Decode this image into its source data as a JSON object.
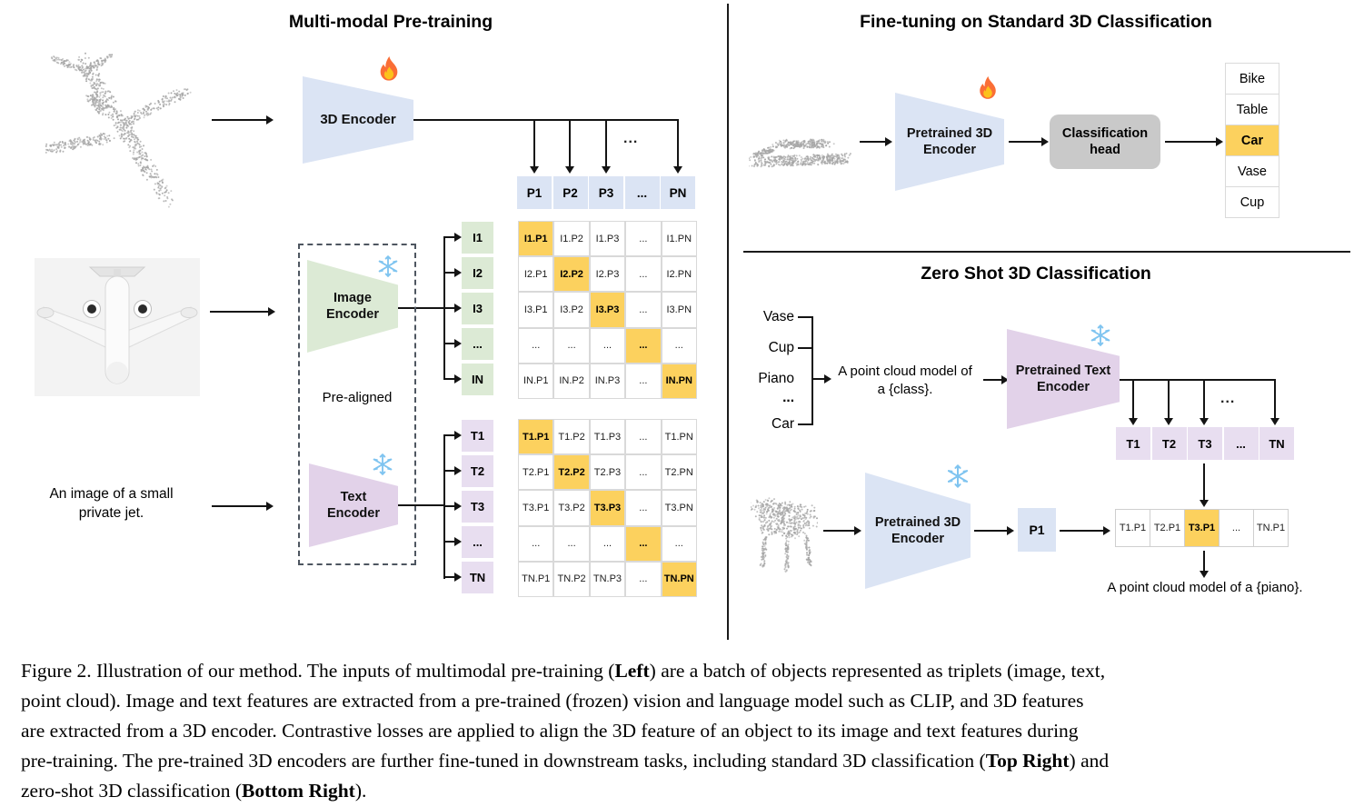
{
  "figure": {
    "left": {
      "title": "Multi-modal Pre-training",
      "encoder_3d": {
        "label": "3D Encoder",
        "icon": "fire-icon"
      },
      "p_row": [
        "P1",
        "P2",
        "P3",
        "...",
        "PN"
      ],
      "branch_ellipsis": "...",
      "image_encoder": {
        "line1": "Image",
        "line2": "Encoder",
        "icon": "snowflake-icon"
      },
      "text_encoder": {
        "line1": "Text",
        "line2": "Encoder",
        "icon": "snowflake-icon"
      },
      "prealigned": "Pre-aligned",
      "input_text": {
        "line1": "An image of a small",
        "line2": "private jet."
      },
      "i_labels": [
        "I1",
        "I2",
        "I3",
        "...",
        "IN"
      ],
      "i_matrix": {
        "rows": [
          {
            "cells": [
              "I1.P1",
              "I1.P2",
              "I1.P3",
              "...",
              "I1.PN"
            ],
            "hi": 0
          },
          {
            "cells": [
              "I2.P1",
              "I2.P2",
              "I2.P3",
              "...",
              "I2.PN"
            ],
            "hi": 1
          },
          {
            "cells": [
              "I3.P1",
              "I3.P2",
              "I3.P3",
              "...",
              "I3.PN"
            ],
            "hi": 2
          },
          {
            "cells": [
              "...",
              "...",
              "...",
              "...",
              "..."
            ],
            "hi": 3
          },
          {
            "cells": [
              "IN.P1",
              "IN.P2",
              "IN.P3",
              "...",
              "IN.PN"
            ],
            "hi": 4
          }
        ]
      },
      "t_labels": [
        "T1",
        "T2",
        "T3",
        "...",
        "TN"
      ],
      "t_matrix": {
        "rows": [
          {
            "cells": [
              "T1.P1",
              "T1.P2",
              "T1.P3",
              "...",
              "T1.PN"
            ],
            "hi": 0
          },
          {
            "cells": [
              "T2.P1",
              "T2.P2",
              "T2.P3",
              "...",
              "T2.PN"
            ],
            "hi": 1
          },
          {
            "cells": [
              "T3.P1",
              "T3.P2",
              "T3.P3",
              "...",
              "T3.PN"
            ],
            "hi": 2
          },
          {
            "cells": [
              "...",
              "...",
              "...",
              "...",
              "..."
            ],
            "hi": 3
          },
          {
            "cells": [
              "TN.P1",
              "TN.P2",
              "TN.P3",
              "...",
              "TN.PN"
            ],
            "hi": 4
          }
        ]
      }
    },
    "top_right": {
      "title": "Fine-tuning on Standard 3D Classification",
      "encoder": {
        "line1": "Pretrained 3D",
        "line2": "Encoder",
        "icon": "fire-icon"
      },
      "head": {
        "line1": "Classification",
        "line2": "head"
      },
      "classes": [
        {
          "label": "Bike"
        },
        {
          "label": "Table"
        },
        {
          "label": "Car",
          "hi": true
        },
        {
          "label": "Vase"
        },
        {
          "label": "Cup"
        }
      ]
    },
    "bottom_right": {
      "title": "Zero Shot 3D Classification",
      "prompt_classes": [
        "Vase",
        "Cup",
        "Piano",
        "...",
        "Car"
      ],
      "prompt": {
        "line1": "A point cloud model of",
        "line2": "a {class}."
      },
      "text_encoder": {
        "line1": "Pretrained Text",
        "line2": "Encoder",
        "icon": "snowflake-icon"
      },
      "t_row": [
        "T1",
        "T2",
        "T3",
        "...",
        "TN"
      ],
      "branch_ellipsis": "...",
      "encoder_3d": {
        "line1": "Pretrained 3D",
        "line2": "Encoder",
        "icon": "snowflake-icon"
      },
      "p1": "P1",
      "match_row": {
        "cells": [
          "T1.P1",
          "T2.P1",
          "T3.P1",
          "...",
          "TN.P1"
        ],
        "hi": 2
      },
      "result": "A point cloud model of a {piano}."
    },
    "caption": {
      "lines": [
        [
          {
            "t": "Figure 2. Illustration of our method. The inputs of multimodal pre-training ("
          },
          {
            "t": "Left",
            "b": true
          },
          {
            "t": ") are a batch of objects represented as triplets (image, text,"
          }
        ],
        [
          {
            "t": "point cloud). Image and text features are extracted from a pre-trained (frozen) vision and language model such as CLIP, and 3D features"
          }
        ],
        [
          {
            "t": "are extracted from a 3D encoder. Contrastive losses are applied to align the 3D feature of an object to its image and text features during"
          }
        ],
        [
          {
            "t": "pre-training. The pre-trained 3D encoders are further fine-tuned in downstream tasks, including standard 3D classification ("
          },
          {
            "t": "Top Right",
            "b": true
          },
          {
            "t": ") and"
          }
        ],
        [
          {
            "t": "zero-shot 3D classification ("
          },
          {
            "t": "Bottom Right",
            "b": true
          },
          {
            "t": ")."
          }
        ]
      ]
    },
    "colors": {
      "blue": "#dbe4f4",
      "green": "#dcead5",
      "purple": "#e2d2e9",
      "purple_light": "#e8def0",
      "orange": "#fcd15e",
      "gray_head": "#c9c9c9",
      "cell_border": "#d9d9d9",
      "point_cloud": "#a6a6a6"
    }
  }
}
